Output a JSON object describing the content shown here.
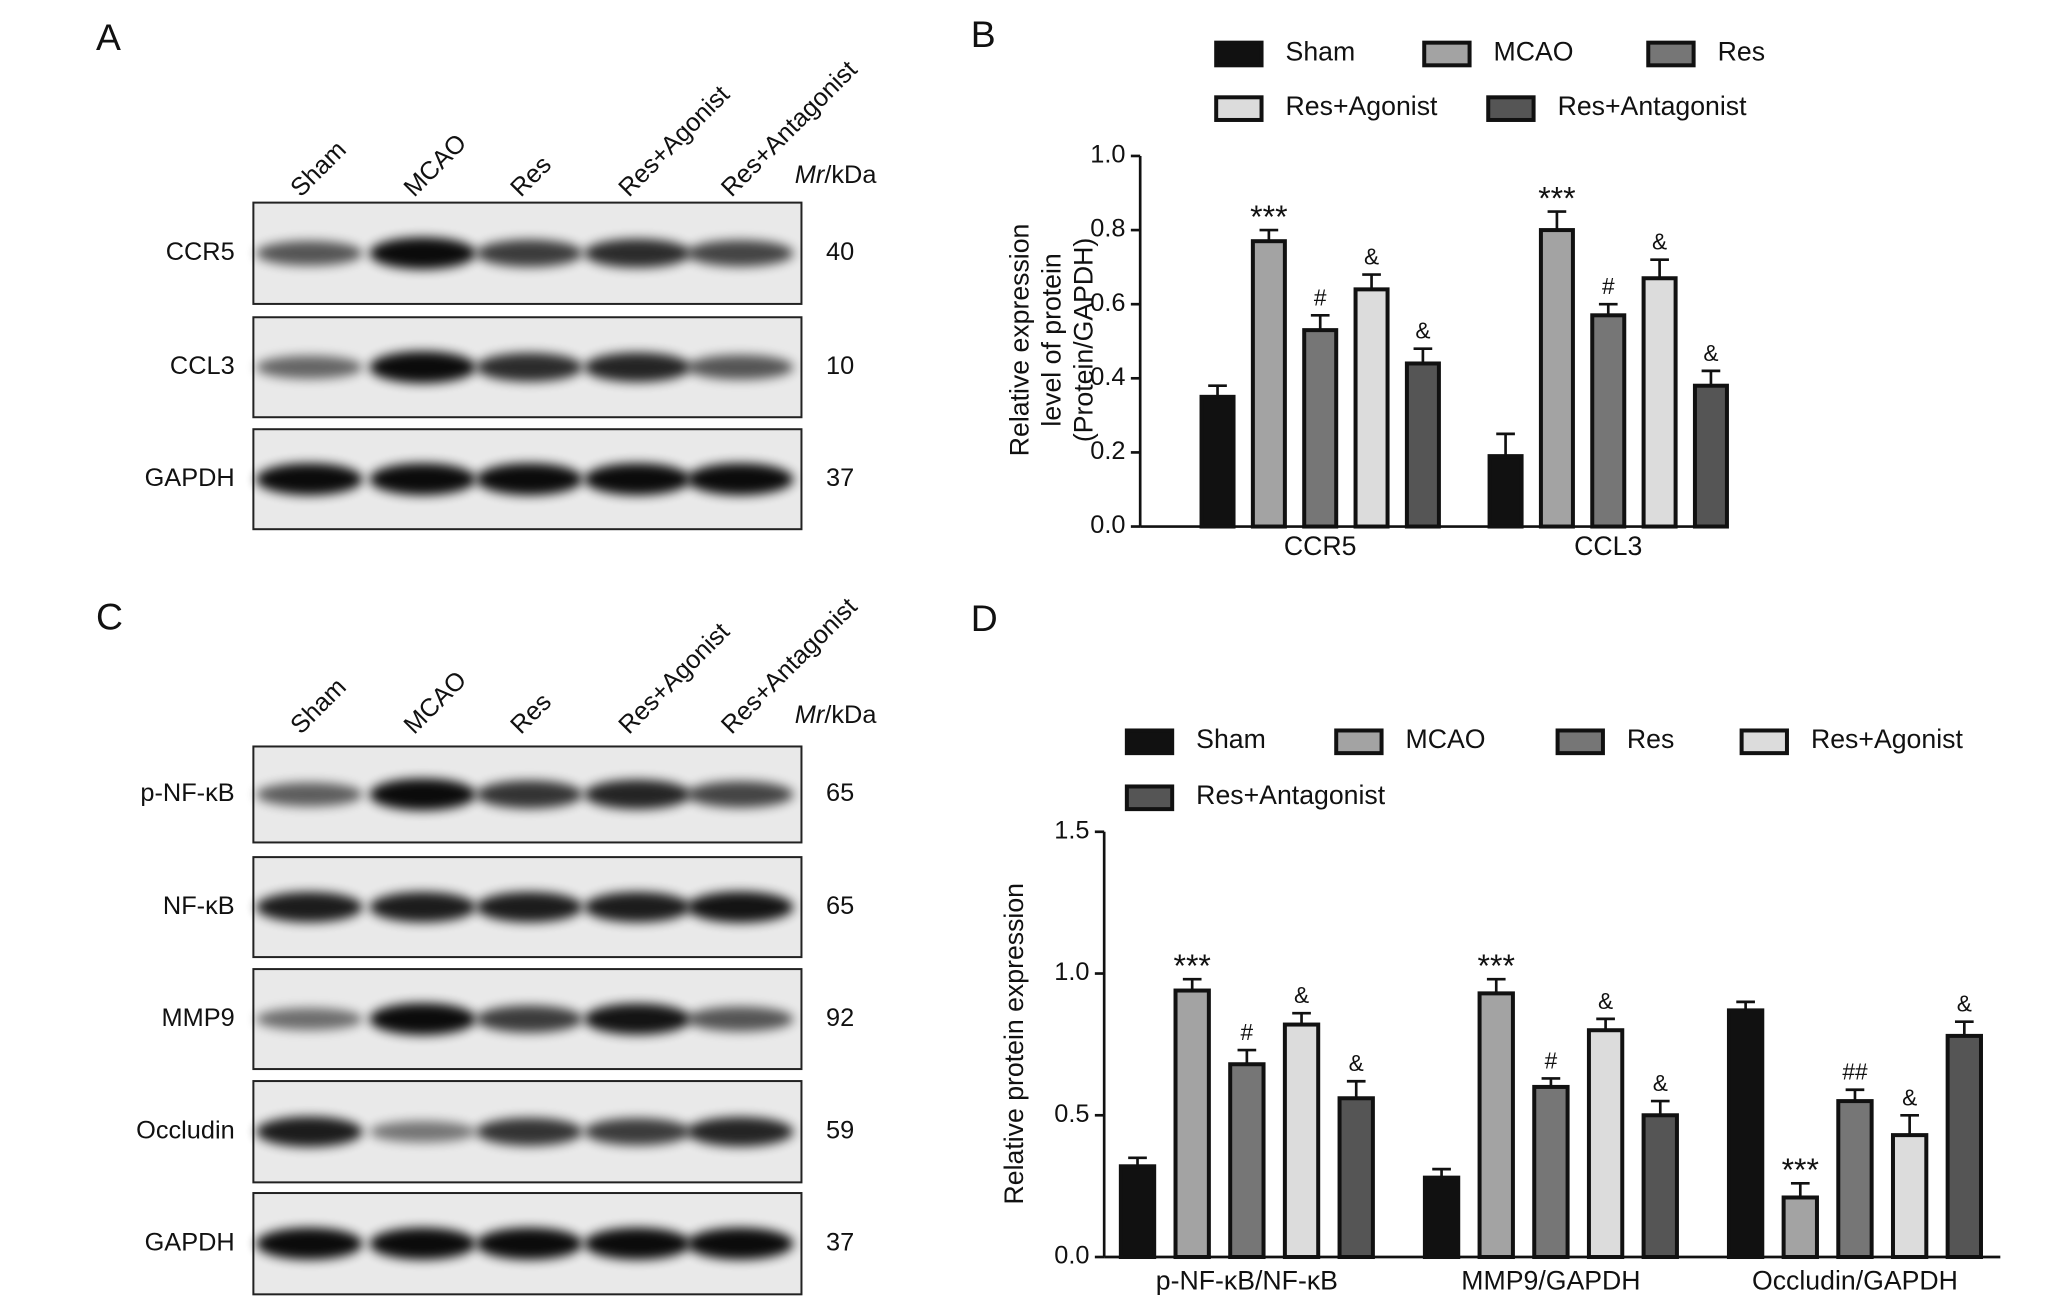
{
  "panel_a": {
    "letter": "A",
    "lanes": [
      "Sham",
      "MCAO",
      "Res",
      "Res+Agonist",
      "Res+Antagonist"
    ],
    "mr_header": {
      "italic": "Mr",
      "rest": "/kDa"
    },
    "rows": [
      {
        "label": "CCR5",
        "mr": 40
      },
      {
        "label": "CCL3",
        "mr": 10
      },
      {
        "label": "GAPDH",
        "mr": 37
      }
    ]
  },
  "panel_c": {
    "letter": "C",
    "lanes": [
      "Sham",
      "MCAO",
      "Res",
      "Res+Agonist",
      "Res+Antagonist"
    ],
    "mr_header": {
      "italic": "Mr",
      "rest": "/kDa"
    },
    "rows": [
      {
        "label": "p-NF-κB",
        "mr": 65
      },
      {
        "label": "NF-κB",
        "mr": 65
      },
      {
        "label": "MMP9",
        "mr": 92
      },
      {
        "label": "Occludin",
        "mr": 59
      },
      {
        "label": "GAPDH",
        "mr": 37
      }
    ]
  },
  "chart_data": [
    {
      "type": "bar",
      "panel": "B",
      "ylabel": [
        "Relative expression",
        "level of protein",
        "(Protein/GAPDH)"
      ],
      "categories": [
        "CCR5",
        "CCL3"
      ],
      "ylim": [
        0,
        1
      ],
      "yticks": [
        {
          "value": 0,
          "label": "0.0"
        },
        0.2,
        0.4,
        0.6,
        0.8,
        {
          "value": 1,
          "label": "1.0"
        }
      ],
      "series": [
        {
          "name": "Sham",
          "color": "#111111",
          "values": [
            0.35,
            0.19
          ],
          "errors": [
            0.03,
            0.06
          ]
        },
        {
          "name": "MCAO",
          "color": "#a3a3a3",
          "values": [
            0.77,
            0.8
          ],
          "errors": [
            0.03,
            0.05
          ],
          "annotations": [
            "***",
            "***"
          ]
        },
        {
          "name": "Res",
          "color": "#767676",
          "values": [
            0.53,
            0.57
          ],
          "errors": [
            0.04,
            0.03
          ],
          "annotations": [
            "#",
            "#"
          ]
        },
        {
          "name": "Res+Agonist",
          "color": "#dcdcdc",
          "values": [
            0.64,
            0.67
          ],
          "errors": [
            0.04,
            0.05
          ],
          "annotations": [
            "&",
            "&"
          ]
        },
        {
          "name": "Res+Antagonist",
          "color": "#555555",
          "values": [
            0.44,
            0.38
          ],
          "errors": [
            0.04,
            0.04
          ],
          "annotations": [
            "&",
            "&"
          ]
        }
      ]
    },
    {
      "type": "bar",
      "panel": "D",
      "ylabel": [
        "Relative protein expression"
      ],
      "categories": [
        "p-NF-κB/NF-κB",
        "MMP9/GAPDH",
        "Occludin/GAPDH"
      ],
      "ylim": [
        0,
        1.5
      ],
      "yticks": [
        {
          "value": 0,
          "label": "0.0"
        },
        0.5,
        {
          "value": 1,
          "label": "1.0"
        },
        1.5
      ],
      "series": [
        {
          "name": "Sham",
          "color": "#111111",
          "values": [
            0.32,
            0.28,
            0.87
          ],
          "errors": [
            0.03,
            0.03,
            0.03
          ]
        },
        {
          "name": "MCAO",
          "color": "#a3a3a3",
          "values": [
            0.94,
            0.93,
            0.21
          ],
          "errors": [
            0.04,
            0.05,
            0.05
          ],
          "annotations": [
            "***",
            "***",
            "***"
          ]
        },
        {
          "name": "Res",
          "color": "#767676",
          "values": [
            0.68,
            0.6,
            0.55
          ],
          "errors": [
            0.05,
            0.03,
            0.04
          ],
          "annotations": [
            "#",
            "#",
            "##"
          ]
        },
        {
          "name": "Res+Agonist",
          "color": "#dcdcdc",
          "values": [
            0.82,
            0.8,
            0.43
          ],
          "errors": [
            0.04,
            0.04,
            0.07
          ],
          "annotations": [
            "&",
            "&",
            "&"
          ]
        },
        {
          "name": "Res+Antagonist",
          "color": "#555555",
          "values": [
            0.56,
            0.5,
            0.78
          ],
          "errors": [
            0.06,
            0.05,
            0.05
          ],
          "annotations": [
            "&",
            "&",
            "&"
          ]
        }
      ]
    }
  ]
}
